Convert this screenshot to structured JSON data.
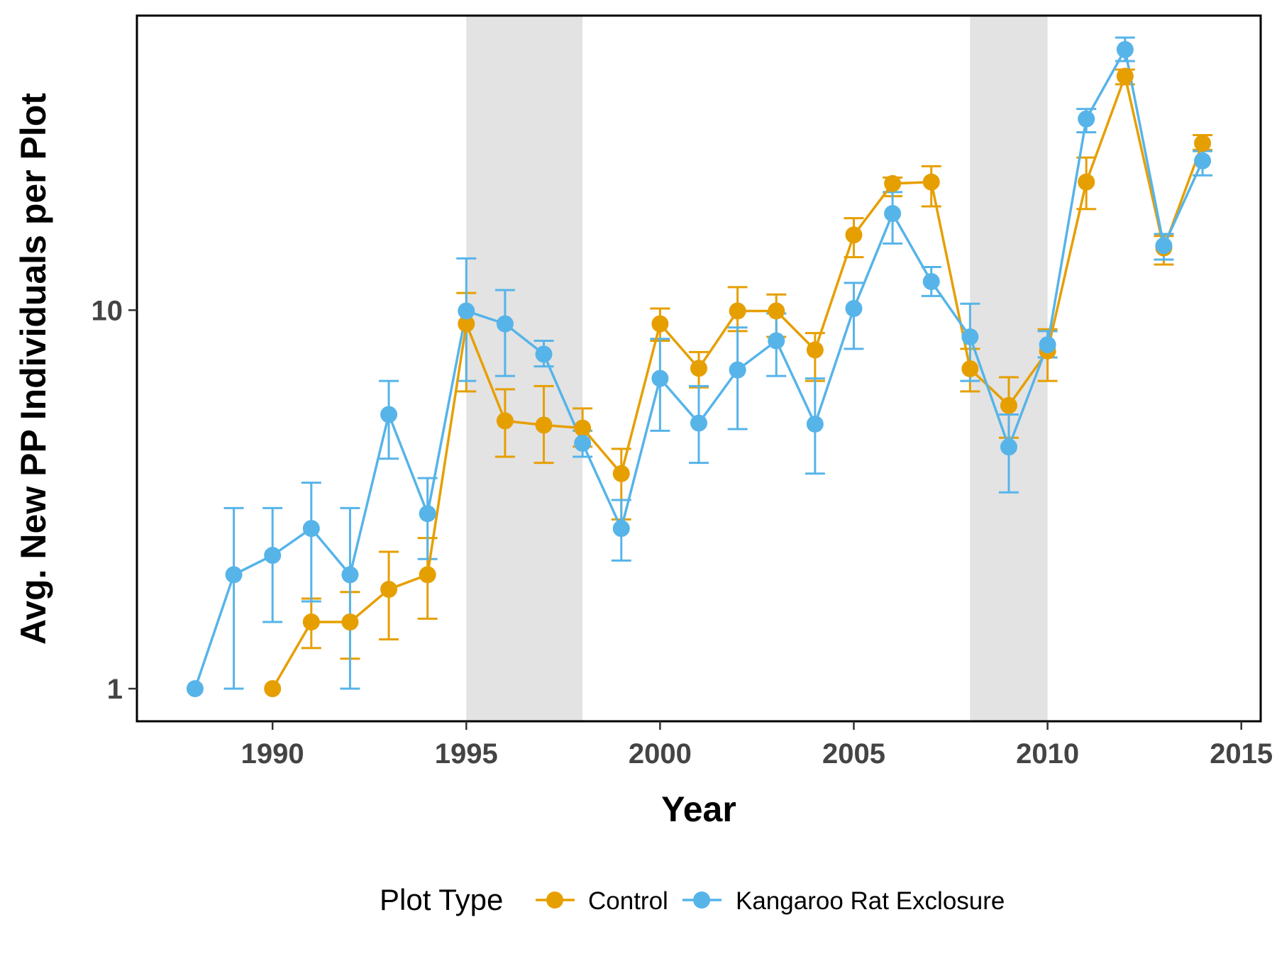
{
  "chart_data": {
    "type": "line",
    "xlabel": "Year",
    "ylabel": "Avg. New PP Individuals per Plot",
    "y_scale": "log10",
    "xlim": [
      1986.5,
      2015.5
    ],
    "ylim": [
      0.82,
      60
    ],
    "x_ticks": [
      1990,
      1995,
      2000,
      2005,
      2010,
      2015
    ],
    "x_tick_labels": [
      "1990",
      "1995",
      "2000",
      "2005",
      "2010",
      "2015"
    ],
    "y_ticks": [
      1,
      10
    ],
    "y_tick_labels": [
      "1",
      "10"
    ],
    "grid": false,
    "shaded_periods": [
      [
        1995,
        1998
      ],
      [
        2008,
        2010
      ]
    ],
    "shade_color": "#e3e3e3",
    "legend": {
      "title": "Plot Type",
      "position": "bottom",
      "entries": [
        "Control",
        "Kangaroo Rat Exclosure"
      ]
    },
    "series": [
      {
        "name": "Control",
        "color": "#e69f00",
        "x": [
          1990,
          1991,
          1992,
          1993,
          1994,
          1995,
          1996,
          1997,
          1998,
          1999,
          2000,
          2001,
          2002,
          2003,
          2004,
          2005,
          2006,
          2007,
          2008,
          2009,
          2010,
          2011,
          2012,
          2013,
          2014
        ],
        "y": [
          1.0,
          1.5,
          1.5,
          1.83,
          2.0,
          9.2,
          5.1,
          4.97,
          4.88,
          3.7,
          9.2,
          7.02,
          9.95,
          9.95,
          7.85,
          15.8,
          21.6,
          21.8,
          7.0,
          5.6,
          7.8,
          21.8,
          41.5,
          14.6,
          27.6
        ],
        "error_low": [
          1.0,
          1.28,
          1.2,
          1.35,
          1.53,
          6.1,
          4.1,
          3.95,
          4.36,
          2.8,
          8.3,
          6.25,
          8.8,
          8.5,
          6.5,
          13.8,
          20.0,
          18.8,
          6.1,
          4.6,
          6.5,
          18.5,
          39.5,
          13.2,
          26.5
        ],
        "error_high": [
          1.0,
          1.73,
          1.8,
          2.3,
          2.5,
          11.1,
          6.18,
          6.3,
          5.5,
          4.3,
          10.1,
          7.75,
          11.5,
          11.0,
          8.7,
          17.5,
          22.4,
          24.0,
          7.9,
          6.65,
          8.9,
          25.3,
          43.2,
          15.7,
          29.0
        ]
      },
      {
        "name": "Kangaroo Rat Exclosure",
        "color": "#56b4e9",
        "x": [
          1988,
          1989,
          1990,
          1991,
          1992,
          1993,
          1994,
          1995,
          1996,
          1997,
          1998,
          1999,
          2000,
          2001,
          2002,
          2003,
          2004,
          2005,
          2006,
          2007,
          2008,
          2009,
          2010,
          2011,
          2012,
          2013,
          2014
        ],
        "y": [
          1.0,
          2.0,
          2.25,
          2.65,
          2.0,
          5.3,
          2.9,
          9.95,
          9.2,
          7.65,
          4.45,
          2.65,
          6.6,
          5.03,
          6.95,
          8.3,
          5.0,
          10.1,
          18.0,
          11.9,
          8.5,
          4.35,
          8.1,
          32.0,
          48.8,
          14.8,
          24.8
        ],
        "error_low": [
          1.0,
          1.0,
          1.5,
          1.7,
          1.0,
          4.05,
          2.2,
          6.5,
          6.7,
          7.1,
          4.1,
          2.18,
          4.8,
          3.95,
          4.85,
          6.7,
          3.7,
          7.9,
          15.0,
          10.9,
          6.5,
          3.3,
          7.5,
          29.5,
          45.5,
          13.6,
          22.7
        ],
        "error_high": [
          1.0,
          3.0,
          3.0,
          3.5,
          3.0,
          6.5,
          3.6,
          13.7,
          11.3,
          8.3,
          4.8,
          3.15,
          8.4,
          6.3,
          9.0,
          9.8,
          6.6,
          11.8,
          20.5,
          13.0,
          10.4,
          5.3,
          8.8,
          34.0,
          52.5,
          15.9,
          26.3
        ]
      }
    ]
  }
}
